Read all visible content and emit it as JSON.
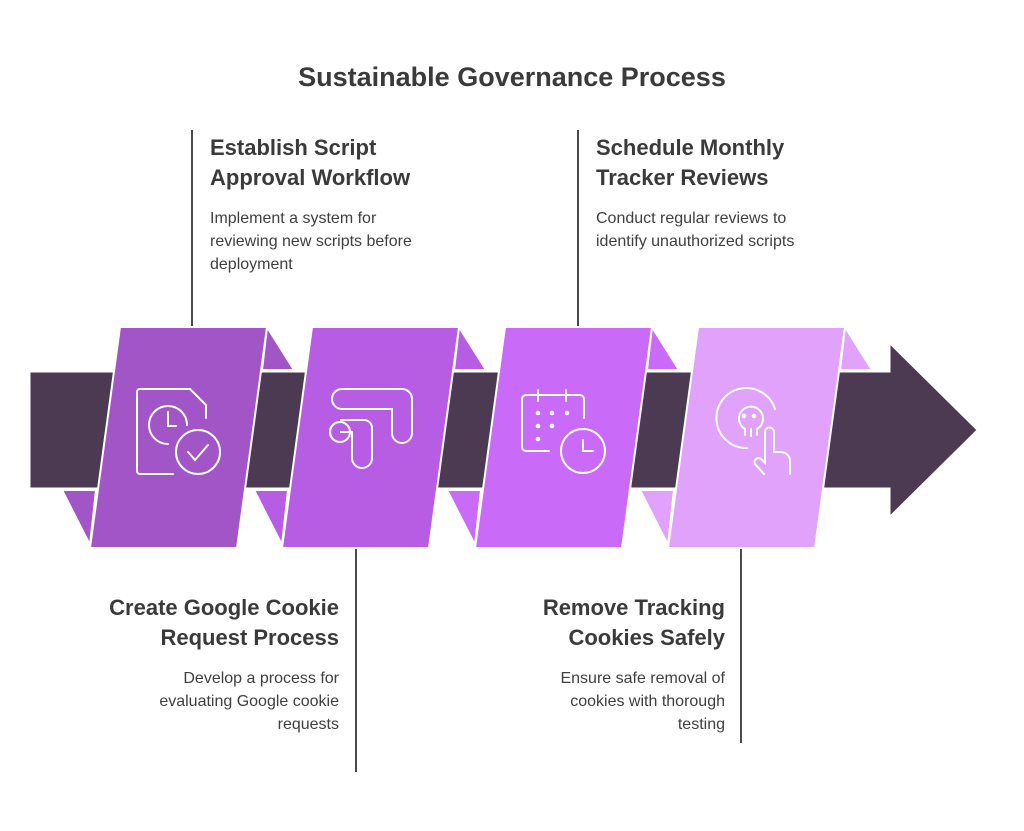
{
  "title": "Sustainable Governance Process",
  "colors": {
    "band": "#4b3a52",
    "step1": "#a155c7",
    "step2": "#b65de3",
    "step3": "#c96bf8",
    "step4": "#e0a2fb",
    "connector": "#4a4a4a"
  },
  "steps": [
    {
      "heading": "Establish Script Approval Workflow",
      "description": "Implement a system for reviewing new scripts before deployment",
      "icon": "document-clock-check-icon",
      "position": "top"
    },
    {
      "heading": "Create Google Cookie Request Process",
      "description": "Develop a process for evaluating Google cookie requests",
      "icon": "google-analytics-icon",
      "position": "bottom"
    },
    {
      "heading": "Schedule Monthly Tracker Reviews",
      "description": "Conduct regular reviews to identify unauthorized scripts",
      "icon": "calendar-clock-icon",
      "position": "top"
    },
    {
      "heading": "Remove Tracking Cookies Safely",
      "description": "Ensure safe removal of cookies with thorough testing",
      "icon": "skull-tap-icon",
      "position": "bottom"
    }
  ]
}
